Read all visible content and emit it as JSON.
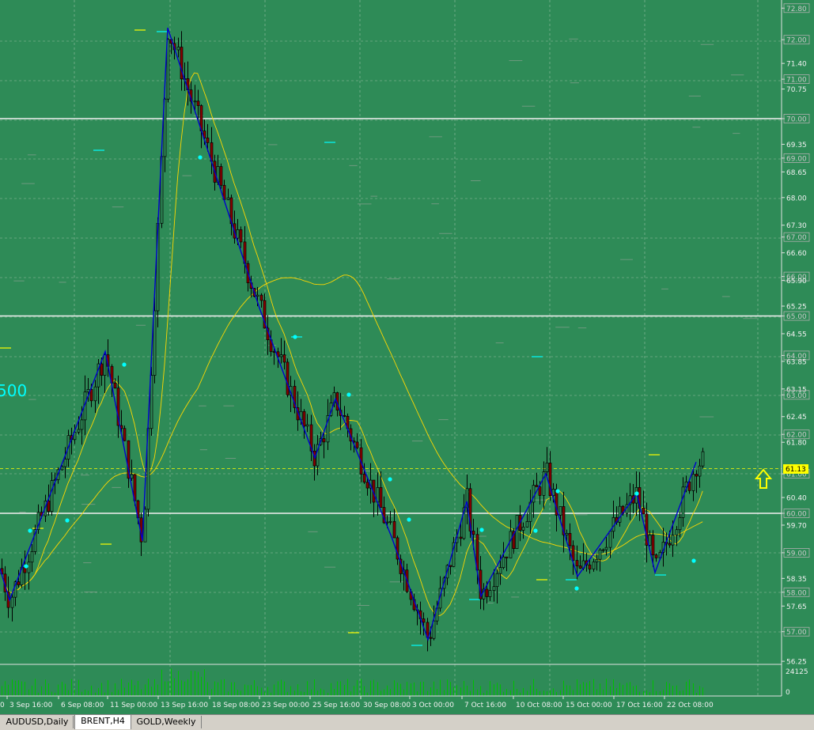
{
  "chart_data": {
    "type": "candlestick",
    "symbol": "BRENT",
    "timeframe": "H4",
    "current_price": "61.13",
    "current_value": 61.13,
    "partial_left_label": "500",
    "price_labels": [
      "72.80",
      "72.00",
      "71.40",
      "71.00",
      "70.75",
      "70.00",
      "69.35",
      "69.00",
      "68.65",
      "68.00",
      "67.30",
      "67.00",
      "66.60",
      "66.00",
      "65.90",
      "65.25",
      "65.00",
      "64.55",
      "64.00",
      "63.85",
      "63.15",
      "63.00",
      "62.45",
      "62.00",
      "61.80",
      "61.00",
      "60.40",
      "60.00",
      "59.70",
      "59.00",
      "58.35",
      "58.00",
      "57.65",
      "57.00",
      "56.25"
    ],
    "volume_labels": [
      "24125",
      "0"
    ],
    "x_labels": [
      "3 Sep 16:00",
      "6 Sep 08:00",
      "11 Sep 00:00",
      "13 Sep 16:00",
      "18 Sep 08:00",
      "23 Sep 00:00",
      "25 Sep 16:00",
      "30 Sep 08:00",
      "3 Oct 00:00",
      "7 Oct 16:00",
      "10 Oct 08:00",
      "15 Oct 00:00",
      "17 Oct 16:00",
      "22 Oct 08:00"
    ],
    "x_label_first_partial": "0",
    "horizontal_levels": [
      70.0,
      65.0,
      60.0
    ],
    "zigzag_points": [
      [
        0,
        58.6
      ],
      [
        12,
        57.8
      ],
      [
        133,
        64.1
      ],
      [
        180,
        59.3
      ],
      [
        212,
        72.3
      ],
      [
        328,
        65.2
      ],
      [
        398,
        61.4
      ],
      [
        424,
        62.9
      ],
      [
        495,
        59.4
      ],
      [
        541,
        56.8
      ],
      [
        590,
        60.3
      ],
      [
        608,
        57.9
      ],
      [
        690,
        61.0
      ],
      [
        730,
        58.4
      ],
      [
        805,
        60.5
      ],
      [
        828,
        58.5
      ],
      [
        880,
        61.3
      ]
    ],
    "grid": true,
    "colors": {
      "background": "#2e8b57",
      "grid": "#c8d8c8",
      "zigzag": "#0000cd",
      "ma": "#ffd700",
      "level": "#f0f0f0",
      "dots": "#00ffff",
      "arrow": "#ffff00",
      "price_tag": "#ffff00"
    }
  },
  "tabs": [
    {
      "label": "AUDUSD,Daily",
      "active": false
    },
    {
      "label": "BRENT,H4",
      "active": true
    },
    {
      "label": "GOLD,Weekly",
      "active": false
    }
  ]
}
